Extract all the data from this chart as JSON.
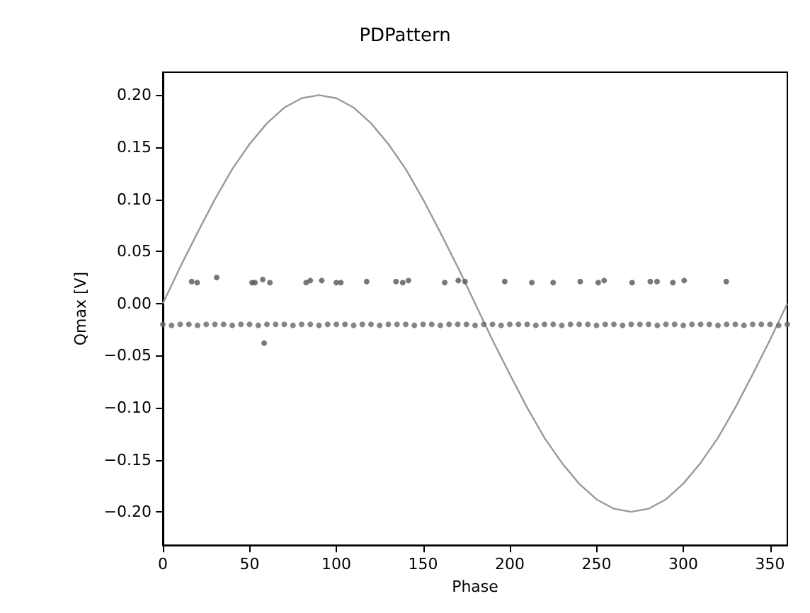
{
  "chart_data": {
    "type": "scatter",
    "title": "PDPattern",
    "xlabel": "Phase",
    "ylabel": "Qmax [V]",
    "xlim": [
      0,
      360
    ],
    "ylim": [
      -0.232,
      0.222
    ],
    "xticks": [
      0,
      50,
      100,
      150,
      200,
      250,
      300,
      350
    ],
    "yticks": [
      {
        "value": -0.2,
        "label": "−0.20"
      },
      {
        "value": -0.15,
        "label": "−0.15"
      },
      {
        "value": -0.1,
        "label": "−0.10"
      },
      {
        "value": -0.05,
        "label": "−0.05"
      },
      {
        "value": 0,
        "label": "0.00"
      },
      {
        "value": 0.05,
        "label": "0.05"
      },
      {
        "value": 0.1,
        "label": "0.10"
      },
      {
        "value": 0.15,
        "label": "0.15"
      },
      {
        "value": 0.2,
        "label": "0.20"
      }
    ],
    "grid": false,
    "series": [
      {
        "type": "line",
        "color": "#999999",
        "marker": "none",
        "x": [
          0,
          10,
          20,
          30,
          40,
          50,
          60,
          70,
          80,
          90,
          100,
          110,
          120,
          130,
          140,
          150,
          160,
          170,
          180,
          190,
          200,
          210,
          220,
          230,
          240,
          250,
          260,
          270,
          280,
          290,
          300,
          310,
          320,
          330,
          340,
          350,
          360
        ],
        "values": [
          0,
          0.035,
          0.068,
          0.1,
          0.129,
          0.153,
          0.173,
          0.188,
          0.197,
          0.2,
          0.197,
          0.188,
          0.173,
          0.153,
          0.129,
          0.1,
          0.068,
          0.035,
          0,
          -0.035,
          -0.068,
          -0.1,
          -0.129,
          -0.153,
          -0.173,
          -0.188,
          -0.197,
          -0.2,
          -0.197,
          -0.188,
          -0.173,
          -0.153,
          -0.129,
          -0.1,
          -0.068,
          -0.035,
          0
        ]
      },
      {
        "color": "#555555",
        "marker": "circle",
        "x": [
          16.6,
          19.8,
          31,
          51.4,
          53.1,
          57.6,
          61.7,
          82.6,
          85,
          91.6,
          100,
          102.6,
          117.5,
          134.4,
          138.3,
          141.6,
          162.5,
          170.3,
          174.2,
          197.1,
          212.7,
          225,
          240.6,
          251,
          254.4,
          270.5,
          281,
          284.9,
          294,
          300.5,
          324.8,
          58.4
        ],
        "values": [
          0.021,
          0.02,
          0.025,
          0.02,
          0.02,
          0.023,
          0.02,
          0.02,
          0.022,
          0.022,
          0.02,
          0.02,
          0.021,
          0.021,
          0.02,
          0.022,
          0.02,
          0.022,
          0.021,
          0.021,
          0.02,
          0.02,
          0.021,
          0.02,
          0.022,
          0.02,
          0.021,
          0.021,
          0.02,
          0.022,
          0.021,
          -0.038
        ]
      },
      {
        "color": "#666666",
        "marker": "circle",
        "x": [
          0,
          5,
          10,
          15,
          20,
          25,
          30,
          35,
          40,
          45,
          50,
          55,
          60,
          65,
          70,
          75,
          80,
          85,
          90,
          95,
          100,
          105,
          110,
          115,
          120,
          125,
          130,
          135,
          140,
          145,
          150,
          155,
          160,
          165,
          170,
          175,
          180,
          185,
          190,
          195,
          200,
          205,
          210,
          215,
          220,
          225,
          230,
          235,
          240,
          245,
          250,
          255,
          260,
          265,
          270,
          275,
          280,
          285,
          290,
          295,
          300,
          305,
          310,
          315,
          320,
          325,
          330,
          335,
          340,
          345,
          350,
          355,
          360
        ],
        "values": [
          -0.02,
          -0.021,
          -0.02,
          -0.02,
          -0.021,
          -0.02,
          -0.02,
          -0.02,
          -0.021,
          -0.02,
          -0.02,
          -0.021,
          -0.02,
          -0.02,
          -0.02,
          -0.021,
          -0.02,
          -0.02,
          -0.021,
          -0.02,
          -0.02,
          -0.02,
          -0.021,
          -0.02,
          -0.02,
          -0.021,
          -0.02,
          -0.02,
          -0.02,
          -0.021,
          -0.02,
          -0.02,
          -0.021,
          -0.02,
          -0.02,
          -0.02,
          -0.021,
          -0.02,
          -0.02,
          -0.021,
          -0.02,
          -0.02,
          -0.02,
          -0.021,
          -0.02,
          -0.02,
          -0.021,
          -0.02,
          -0.02,
          -0.02,
          -0.021,
          -0.02,
          -0.02,
          -0.021,
          -0.02,
          -0.02,
          -0.02,
          -0.021,
          -0.02,
          -0.02,
          -0.021,
          -0.02,
          -0.02,
          -0.02,
          -0.021,
          -0.02,
          -0.02,
          -0.021,
          -0.02,
          -0.02,
          -0.02,
          -0.021,
          -0.02
        ]
      }
    ]
  }
}
